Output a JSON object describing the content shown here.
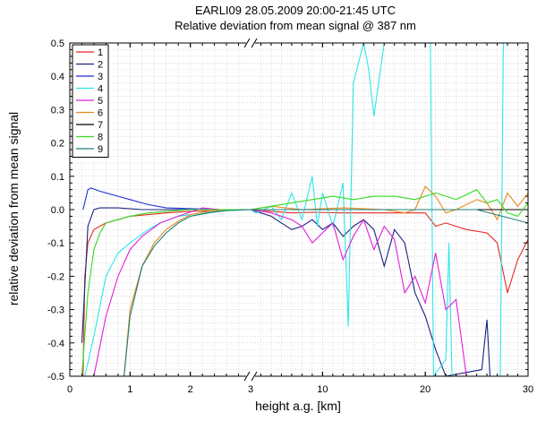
{
  "chart_data": {
    "type": "line",
    "title": "EARLI09 28.05.2009 20:00-21:45 UTC",
    "subtitle": "Relative deviation from mean signal @ 387 nm",
    "xlabel": "height a.g. [km]",
    "ylabel": "relative deviation from mean signal",
    "x_axis": {
      "scale": "broken axis: linear 0-3 km, then linear 3-30 km",
      "break_at": 3,
      "segments": [
        [
          0,
          3
        ],
        [
          3,
          30
        ]
      ],
      "tick_labels": [
        "0",
        "1",
        "2",
        "3",
        "10",
        "20",
        "30"
      ]
    },
    "ylim": [
      -0.5,
      0.5
    ],
    "y_tick_labels": [
      "-0.5",
      "-0.4",
      "-0.3",
      "-0.2",
      "-0.1",
      "0.0",
      "0.1",
      "0.2",
      "0.3",
      "0.4",
      "0.5"
    ],
    "grid": true,
    "legend_position": "top-left",
    "series": [
      {
        "name": "1",
        "color": "#e8281e",
        "points": [
          [
            0.22,
            -0.5
          ],
          [
            0.25,
            -0.2
          ],
          [
            0.3,
            -0.1
          ],
          [
            0.4,
            -0.06
          ],
          [
            0.6,
            -0.04
          ],
          [
            0.8,
            -0.03
          ],
          [
            1.0,
            -0.02
          ],
          [
            1.3,
            -0.015
          ],
          [
            1.6,
            -0.01
          ],
          [
            2.0,
            -0.005
          ],
          [
            2.5,
            -0.003
          ],
          [
            3.0,
            0.0
          ],
          [
            3.5,
            0.0
          ],
          [
            5,
            -0.005
          ],
          [
            7,
            -0.01
          ],
          [
            9,
            -0.008
          ],
          [
            12,
            -0.01
          ],
          [
            14,
            -0.01
          ],
          [
            16,
            -0.01
          ],
          [
            18,
            -0.01
          ],
          [
            20,
            -0.01
          ],
          [
            21,
            -0.05
          ],
          [
            22,
            -0.04
          ],
          [
            23,
            -0.05
          ],
          [
            24,
            -0.06
          ],
          [
            26,
            -0.07
          ],
          [
            27,
            -0.1
          ],
          [
            28,
            -0.25
          ],
          [
            29,
            -0.15
          ],
          [
            30,
            -0.09
          ]
        ]
      },
      {
        "name": "2",
        "color": "#1a237e",
        "points": [
          [
            0.2,
            -0.4
          ],
          [
            0.3,
            -0.05
          ],
          [
            0.4,
            0.0
          ],
          [
            0.5,
            0.005
          ],
          [
            0.8,
            0.005
          ],
          [
            1.2,
            0.0
          ],
          [
            2.0,
            0.0
          ],
          [
            3.0,
            0.0
          ],
          [
            4,
            -0.01
          ],
          [
            5,
            -0.02
          ],
          [
            6,
            -0.04
          ],
          [
            7,
            -0.06
          ],
          [
            8,
            -0.05
          ],
          [
            9,
            -0.03
          ],
          [
            10,
            -0.06
          ],
          [
            11,
            -0.04
          ],
          [
            12,
            -0.08
          ],
          [
            13,
            -0.05
          ],
          [
            14,
            -0.03
          ],
          [
            15,
            -0.06
          ],
          [
            16,
            -0.17
          ],
          [
            17,
            -0.06
          ],
          [
            18,
            -0.1
          ],
          [
            19,
            -0.25
          ],
          [
            20,
            -0.32
          ],
          [
            21,
            -0.42
          ],
          [
            22,
            -0.5
          ],
          [
            25.5,
            -0.48
          ],
          [
            26,
            -0.33
          ],
          [
            26.3,
            -0.5
          ]
        ]
      },
      {
        "name": "3",
        "color": "#1f2fd4",
        "points": [
          [
            0.22,
            0.0
          ],
          [
            0.3,
            0.06
          ],
          [
            0.35,
            0.065
          ],
          [
            0.5,
            0.055
          ],
          [
            0.8,
            0.04
          ],
          [
            1.0,
            0.03
          ],
          [
            1.3,
            0.015
          ],
          [
            1.6,
            0.005
          ],
          [
            2.0,
            0.003
          ],
          [
            2.5,
            0.0
          ],
          [
            3.0,
            0.0
          ]
        ]
      },
      {
        "name": "4",
        "color": "#2ee6e6",
        "points": [
          [
            0.25,
            -0.5
          ],
          [
            0.4,
            -0.38
          ],
          [
            0.6,
            -0.2
          ],
          [
            0.8,
            -0.13
          ],
          [
            1.0,
            -0.1
          ],
          [
            1.3,
            -0.06
          ],
          [
            1.5,
            -0.04
          ],
          [
            1.8,
            -0.02
          ],
          [
            2.2,
            -0.01
          ],
          [
            2.6,
            -0.003
          ],
          [
            3.0,
            0.0
          ],
          [
            3.5,
            -0.01
          ],
          [
            5,
            0.01
          ],
          [
            6,
            -0.03
          ],
          [
            7,
            0.05
          ],
          [
            8,
            -0.03
          ],
          [
            9,
            0.1
          ],
          [
            9.5,
            -0.05
          ],
          [
            10,
            0.05
          ],
          [
            11,
            -0.05
          ],
          [
            12,
            0.08
          ],
          [
            12.5,
            -0.35
          ],
          [
            13,
            0.38
          ],
          [
            14,
            0.5
          ],
          [
            14.5,
            0.42
          ],
          [
            15,
            0.28
          ],
          [
            16,
            0.5
          ],
          [
            20.5,
            0.5
          ],
          [
            20.8,
            -0.5
          ],
          [
            22,
            -0.45
          ],
          [
            22.3,
            -0.1
          ],
          [
            22.6,
            -0.5
          ],
          [
            27.3,
            -0.5
          ],
          [
            27.6,
            0.5
          ]
        ]
      },
      {
        "name": "5",
        "color": "#e020d8",
        "points": [
          [
            0.4,
            -0.5
          ],
          [
            0.6,
            -0.32
          ],
          [
            0.8,
            -0.2
          ],
          [
            1.0,
            -0.12
          ],
          [
            1.2,
            -0.08
          ],
          [
            1.5,
            -0.04
          ],
          [
            1.8,
            -0.02
          ],
          [
            2.2,
            0.005
          ],
          [
            2.5,
            0.0
          ],
          [
            3.0,
            0.0
          ],
          [
            5,
            -0.01
          ],
          [
            7,
            -0.03
          ],
          [
            8,
            -0.05
          ],
          [
            9,
            -0.1
          ],
          [
            10,
            -0.07
          ],
          [
            11,
            -0.04
          ],
          [
            12,
            -0.15
          ],
          [
            13,
            -0.08
          ],
          [
            14,
            -0.03
          ],
          [
            15,
            -0.12
          ],
          [
            16,
            -0.05
          ],
          [
            17,
            -0.09
          ],
          [
            18,
            -0.25
          ],
          [
            19,
            -0.2
          ],
          [
            20,
            -0.28
          ],
          [
            21,
            -0.13
          ],
          [
            22,
            -0.3
          ],
          [
            23,
            -0.27
          ],
          [
            24,
            -0.5
          ]
        ]
      },
      {
        "name": "6",
        "color": "#e88a1f",
        "points": [
          [
            0.9,
            -0.5
          ],
          [
            1.0,
            -0.3
          ],
          [
            1.2,
            -0.17
          ],
          [
            1.4,
            -0.1
          ],
          [
            1.6,
            -0.06
          ],
          [
            1.8,
            -0.035
          ],
          [
            2.0,
            -0.015
          ],
          [
            2.3,
            -0.005
          ],
          [
            2.6,
            0.0
          ],
          [
            3.0,
            0.0
          ],
          [
            5,
            0.01
          ],
          [
            8,
            0.0
          ],
          [
            12,
            0.005
          ],
          [
            16,
            0.0
          ],
          [
            18,
            -0.01
          ],
          [
            19,
            0.0
          ],
          [
            20,
            0.07
          ],
          [
            21,
            0.04
          ],
          [
            22,
            -0.01
          ],
          [
            23,
            0.0
          ],
          [
            25,
            0.03
          ],
          [
            26,
            0.02
          ],
          [
            27,
            -0.03
          ],
          [
            28,
            0.05
          ],
          [
            29,
            0.01
          ],
          [
            30,
            0.05
          ]
        ]
      },
      {
        "name": "7",
        "color": "#000000",
        "points": [
          [
            3.0,
            0.0
          ],
          [
            30,
            0.0
          ]
        ]
      },
      {
        "name": "8",
        "color": "#32dc20",
        "points": [
          [
            0.2,
            -0.5
          ],
          [
            0.3,
            -0.25
          ],
          [
            0.4,
            -0.12
          ],
          [
            0.5,
            -0.07
          ],
          [
            0.6,
            -0.04
          ],
          [
            0.8,
            -0.03
          ],
          [
            1.0,
            -0.02
          ],
          [
            1.3,
            -0.01
          ],
          [
            1.6,
            -0.005
          ],
          [
            2.0,
            0.0
          ],
          [
            3.0,
            0.0
          ],
          [
            5,
            0.01
          ],
          [
            7,
            0.02
          ],
          [
            9,
            0.03
          ],
          [
            11,
            0.04
          ],
          [
            13,
            0.03
          ],
          [
            15,
            0.04
          ],
          [
            17,
            0.04
          ],
          [
            19,
            0.03
          ],
          [
            21,
            0.05
          ],
          [
            23,
            0.03
          ],
          [
            25,
            0.06
          ],
          [
            26,
            0.02
          ],
          [
            27,
            0.03
          ],
          [
            28,
            -0.01
          ],
          [
            29,
            -0.02
          ],
          [
            30,
            0.02
          ]
        ]
      },
      {
        "name": "9",
        "color": "#1e7f7a",
        "points": [
          [
            0.9,
            -0.5
          ],
          [
            1.0,
            -0.32
          ],
          [
            1.2,
            -0.17
          ],
          [
            1.4,
            -0.11
          ],
          [
            1.6,
            -0.07
          ],
          [
            1.8,
            -0.04
          ],
          [
            2.0,
            -0.02
          ],
          [
            2.3,
            -0.01
          ],
          [
            2.6,
            -0.003
          ],
          [
            3.0,
            0.0
          ],
          [
            5,
            0.0
          ],
          [
            10,
            0.0
          ],
          [
            15,
            0.0
          ],
          [
            20,
            0.0
          ],
          [
            25,
            0.0
          ],
          [
            30,
            -0.04
          ]
        ]
      }
    ]
  }
}
